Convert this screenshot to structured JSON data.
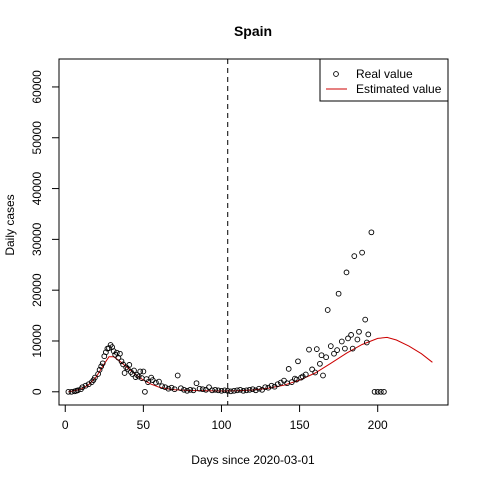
{
  "chart_data": {
    "type": "scatter",
    "title": "Spain",
    "xlabel": "Days since 2020-03-01",
    "ylabel": "Daily cases",
    "xlim": [
      -4,
      245
    ],
    "ylim": [
      -2600,
      65500
    ],
    "xticks": [
      0,
      50,
      100,
      150,
      200
    ],
    "yticks": [
      0,
      10000,
      20000,
      30000,
      40000,
      50000,
      60000
    ],
    "vline_x": 104,
    "grid": false,
    "legend": {
      "position": "top-right",
      "entries": [
        "Real value",
        "Estimated value"
      ]
    },
    "colors": {
      "real": "#000000",
      "estimated": "#cc0000"
    },
    "series": [
      {
        "name": "Real value",
        "type": "scatter",
        "points": [
          [
            2,
            0
          ],
          [
            4,
            0
          ],
          [
            6,
            100
          ],
          [
            7,
            200
          ],
          [
            8,
            300
          ],
          [
            10,
            500
          ],
          [
            11,
            900
          ],
          [
            13,
            1200
          ],
          [
            15,
            1500
          ],
          [
            17,
            1900
          ],
          [
            18,
            2300
          ],
          [
            19,
            2800
          ],
          [
            21,
            3500
          ],
          [
            22,
            4300
          ],
          [
            23,
            5000
          ],
          [
            24,
            5600
          ],
          [
            25,
            7000
          ],
          [
            26,
            7800
          ],
          [
            27,
            8500
          ],
          [
            28,
            8600
          ],
          [
            29,
            9200
          ],
          [
            30,
            8800
          ],
          [
            31,
            8000
          ],
          [
            32,
            7300
          ],
          [
            33,
            7700
          ],
          [
            34,
            6700
          ],
          [
            35,
            7500
          ],
          [
            36,
            6000
          ],
          [
            37,
            5400
          ],
          [
            38,
            3700
          ],
          [
            39,
            4800
          ],
          [
            40,
            4500
          ],
          [
            41,
            5300
          ],
          [
            42,
            3900
          ],
          [
            43,
            3500
          ],
          [
            44,
            4200
          ],
          [
            45,
            2900
          ],
          [
            46,
            3300
          ],
          [
            47,
            3000
          ],
          [
            48,
            4000
          ],
          [
            49,
            2700
          ],
          [
            50,
            4000
          ],
          [
            51,
            0
          ],
          [
            52,
            2500
          ],
          [
            53,
            1900
          ],
          [
            55,
            2800
          ],
          [
            56,
            2300
          ],
          [
            58,
            1800
          ],
          [
            60,
            2000
          ],
          [
            62,
            1100
          ],
          [
            64,
            900
          ],
          [
            66,
            600
          ],
          [
            68,
            800
          ],
          [
            70,
            500
          ],
          [
            72,
            3200
          ],
          [
            74,
            700
          ],
          [
            76,
            400
          ],
          [
            78,
            200
          ],
          [
            80,
            400
          ],
          [
            82,
            300
          ],
          [
            84,
            1700
          ],
          [
            86,
            600
          ],
          [
            88,
            500
          ],
          [
            90,
            400
          ],
          [
            92,
            900
          ],
          [
            94,
            300
          ],
          [
            96,
            400
          ],
          [
            98,
            300
          ],
          [
            100,
            200
          ],
          [
            102,
            300
          ],
          [
            104,
            200
          ],
          [
            106,
            100
          ],
          [
            108,
            200
          ],
          [
            110,
            300
          ],
          [
            112,
            400
          ],
          [
            114,
            200
          ],
          [
            116,
            300
          ],
          [
            118,
            400
          ],
          [
            120,
            500
          ],
          [
            122,
            300
          ],
          [
            124,
            600
          ],
          [
            126,
            400
          ],
          [
            128,
            900
          ],
          [
            130,
            800
          ],
          [
            132,
            1200
          ],
          [
            134,
            1000
          ],
          [
            136,
            1500
          ],
          [
            138,
            1800
          ],
          [
            140,
            2200
          ],
          [
            142,
            1700
          ],
          [
            143,
            4500
          ],
          [
            145,
            1900
          ],
          [
            147,
            2600
          ],
          [
            148,
            2400
          ],
          [
            149,
            6000
          ],
          [
            151,
            2800
          ],
          [
            152,
            3000
          ],
          [
            154,
            3400
          ],
          [
            156,
            8300
          ],
          [
            158,
            4400
          ],
          [
            160,
            3800
          ],
          [
            161,
            8400
          ],
          [
            163,
            5500
          ],
          [
            164,
            7200
          ],
          [
            165,
            3200
          ],
          [
            167,
            6800
          ],
          [
            168,
            16100
          ],
          [
            170,
            9000
          ],
          [
            172,
            7500
          ],
          [
            174,
            8200
          ],
          [
            175,
            19300
          ],
          [
            177,
            9900
          ],
          [
            179,
            8500
          ],
          [
            180,
            23500
          ],
          [
            181,
            10500
          ],
          [
            183,
            11200
          ],
          [
            184,
            8500
          ],
          [
            185,
            26700
          ],
          [
            187,
            10300
          ],
          [
            188,
            11800
          ],
          [
            190,
            27400
          ],
          [
            192,
            14200
          ],
          [
            193,
            9700
          ],
          [
            194,
            11300
          ],
          [
            196,
            31400
          ],
          [
            198,
            0
          ],
          [
            200,
            0
          ],
          [
            202,
            0
          ],
          [
            204,
            0
          ]
        ]
      },
      {
        "name": "Estimated value",
        "type": "line",
        "points": [
          [
            2,
            0
          ],
          [
            5,
            150
          ],
          [
            10,
            500
          ],
          [
            15,
            1400
          ],
          [
            20,
            3000
          ],
          [
            25,
            5500
          ],
          [
            28,
            6900
          ],
          [
            31,
            6900
          ],
          [
            35,
            6000
          ],
          [
            40,
            4700
          ],
          [
            45,
            3400
          ],
          [
            50,
            2300
          ],
          [
            55,
            1500
          ],
          [
            60,
            900
          ],
          [
            65,
            600
          ],
          [
            70,
            400
          ],
          [
            80,
            250
          ],
          [
            90,
            200
          ],
          [
            100,
            150
          ],
          [
            110,
            200
          ],
          [
            120,
            350
          ],
          [
            130,
            700
          ],
          [
            140,
            1300
          ],
          [
            150,
            2300
          ],
          [
            160,
            3700
          ],
          [
            170,
            5600
          ],
          [
            180,
            7600
          ],
          [
            190,
            9300
          ],
          [
            200,
            10500
          ],
          [
            206,
            10700
          ],
          [
            212,
            10200
          ],
          [
            220,
            9000
          ],
          [
            228,
            7500
          ],
          [
            235,
            5800
          ]
        ]
      }
    ]
  }
}
